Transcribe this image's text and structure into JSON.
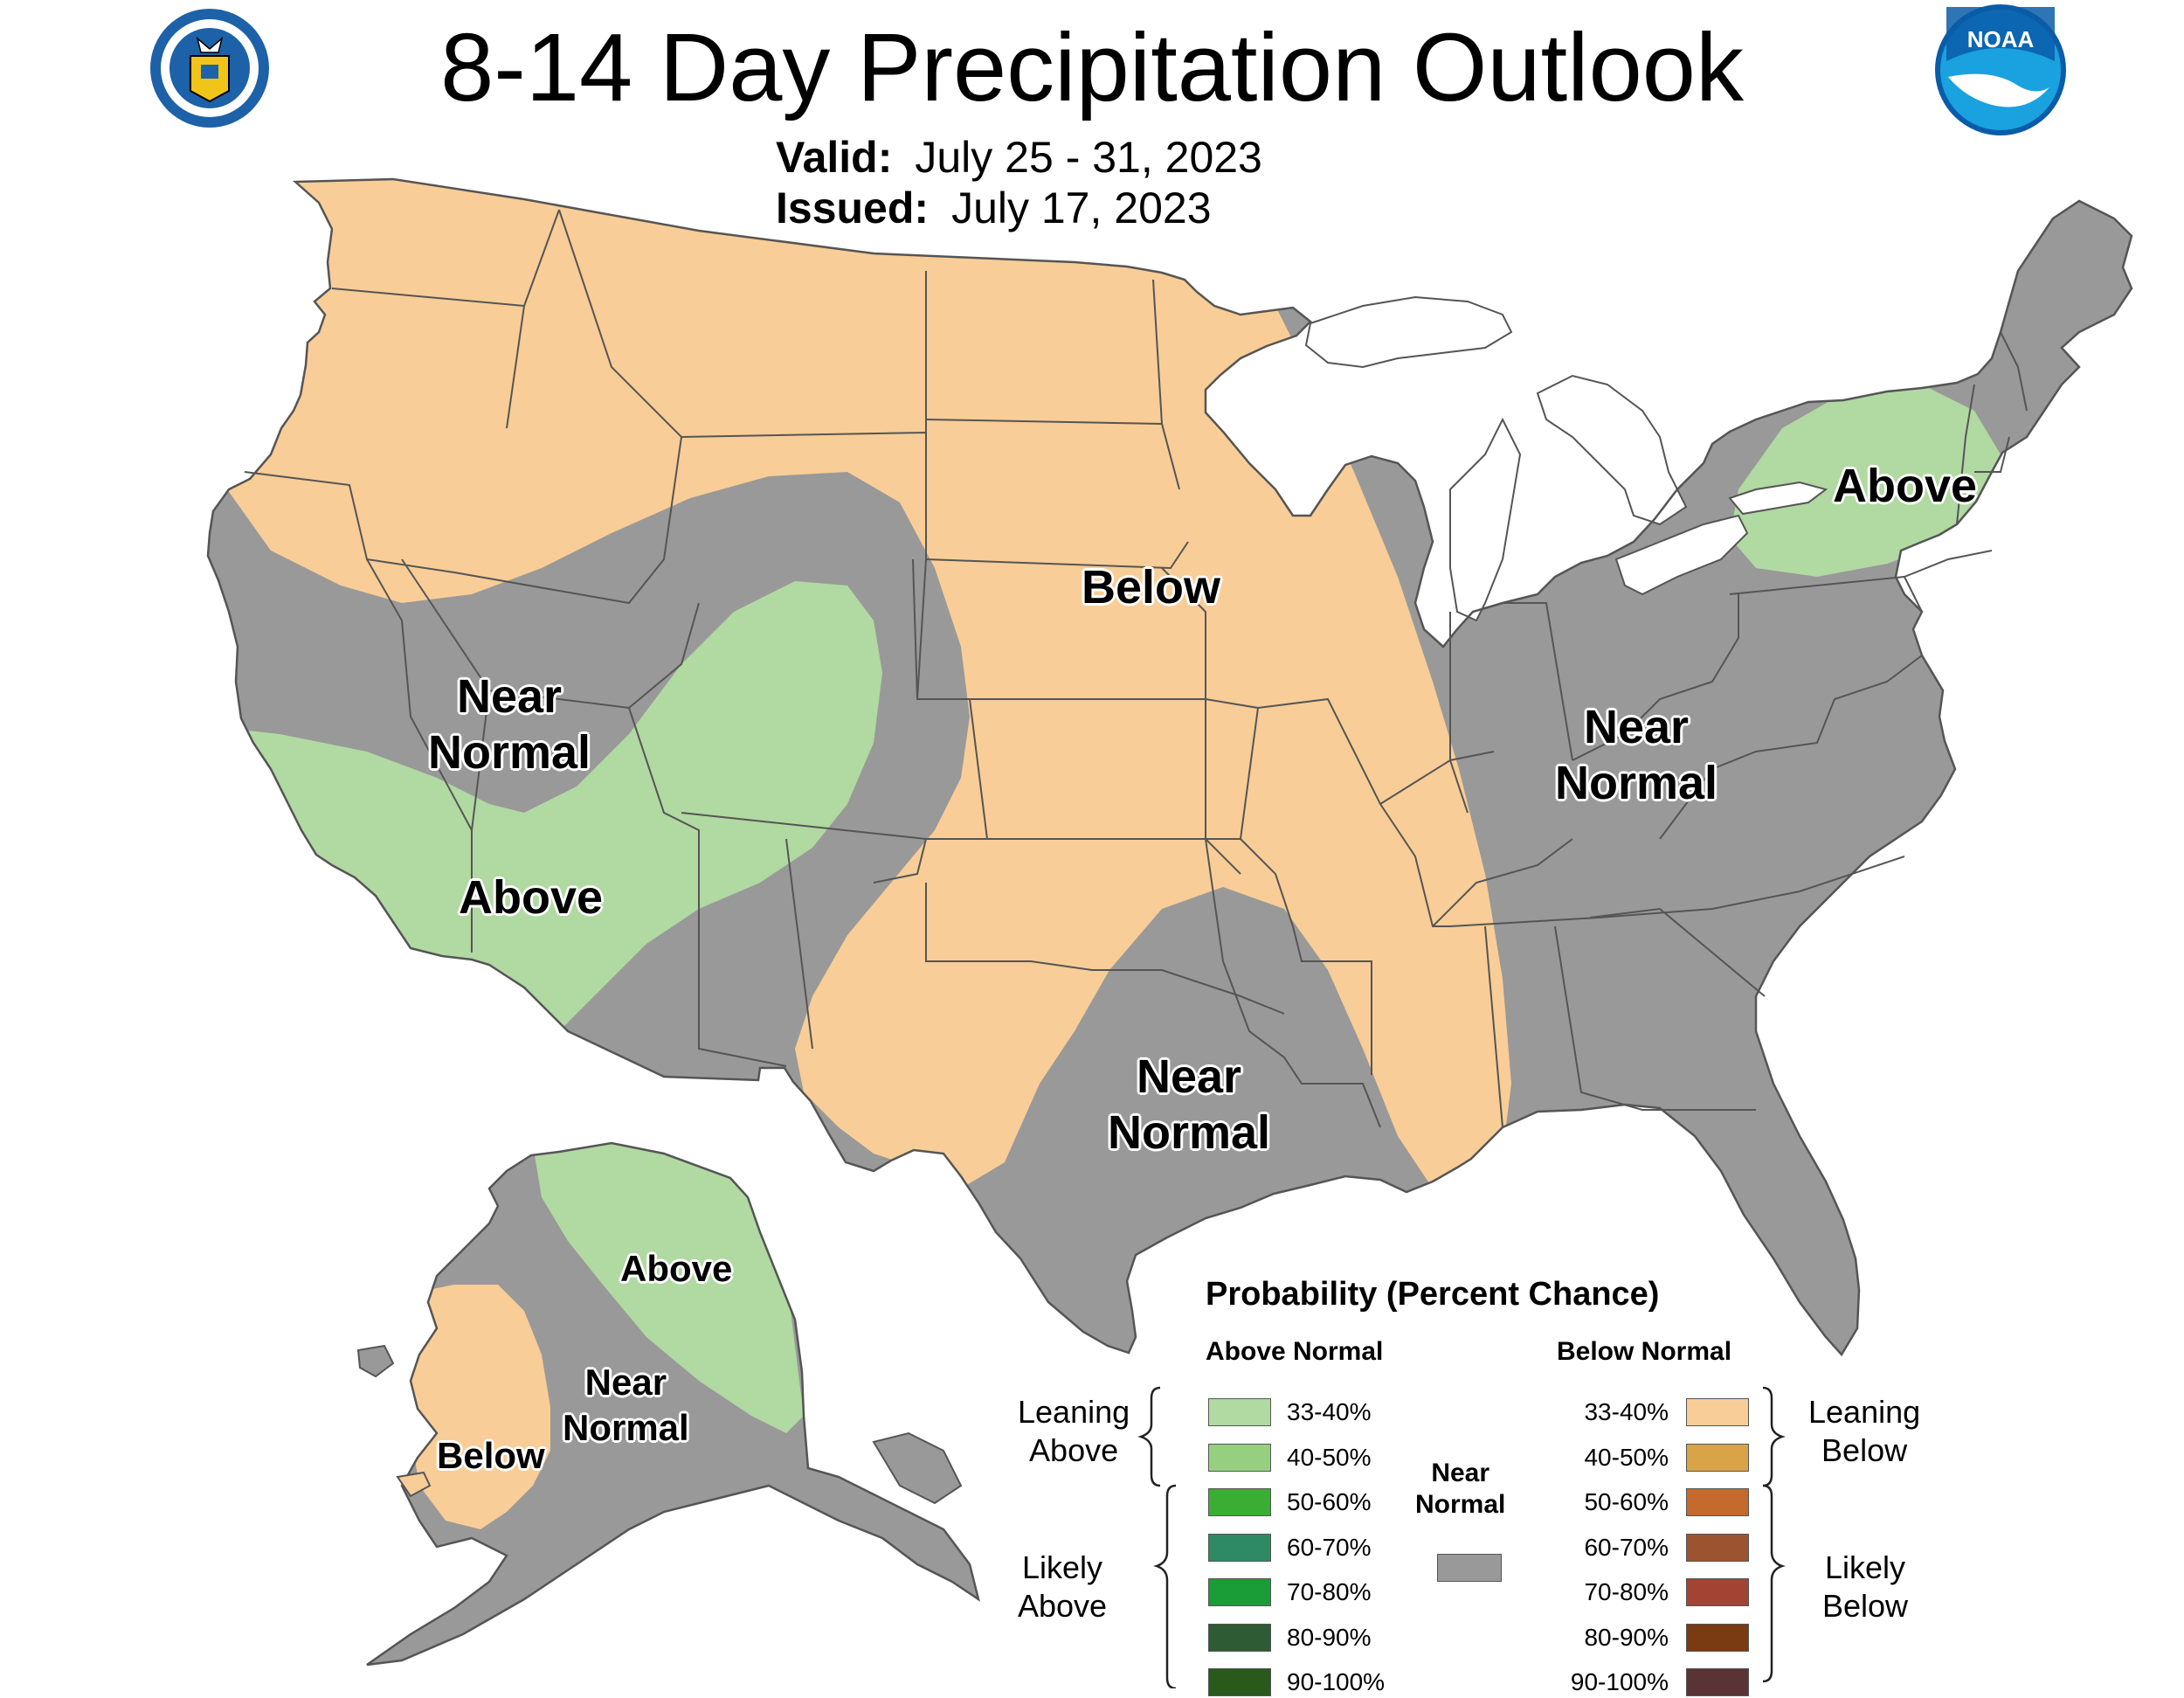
{
  "title": "8-14 Day Precipitation Outlook",
  "valid_label": "Valid:",
  "valid_dates": "July 25 - 31, 2023",
  "issued_label": "Issued:",
  "issued_date": "July 17, 2023",
  "logos": {
    "left": "doc-seal-icon",
    "right": "noaa-logo-icon",
    "noaa_text": "NOAA"
  },
  "colors": {
    "near_normal": "#999999",
    "leaning_below": "#f8cd97",
    "leaning_above": "#b1d9a2",
    "water": "#ffffff",
    "border": "#555555"
  },
  "regions": [
    {
      "id": "below-north",
      "label": "Below"
    },
    {
      "id": "near-west",
      "label": "Near\nNormal"
    },
    {
      "id": "above-sw",
      "label": "Above"
    },
    {
      "id": "above-ne",
      "label": "Above"
    },
    {
      "id": "near-east",
      "label": "Near\nNormal"
    },
    {
      "id": "near-south",
      "label": "Near\nNormal"
    },
    {
      "id": "ak-above",
      "label": "Above"
    },
    {
      "id": "ak-near",
      "label": "Near\nNormal"
    },
    {
      "id": "ak-below",
      "label": "Below"
    }
  ],
  "legend": {
    "title": "Probability (Percent Chance)",
    "above_header": "Above Normal",
    "below_header": "Below Normal",
    "near_label": "Near\nNormal",
    "near_color": "#999999",
    "leaning_above": "Leaning\nAbove",
    "likely_above": "Likely\nAbove",
    "leaning_below": "Leaning\nBelow",
    "likely_below": "Likely\nBelow",
    "above": [
      {
        "range": "33-40%",
        "color": "#b1d9a2"
      },
      {
        "range": "40-50%",
        "color": "#97cf81"
      },
      {
        "range": "50-60%",
        "color": "#3aae32"
      },
      {
        "range": "60-70%",
        "color": "#2e8a64"
      },
      {
        "range": "70-80%",
        "color": "#1a9c36"
      },
      {
        "range": "80-90%",
        "color": "#2e5b33"
      },
      {
        "range": "90-100%",
        "color": "#295a1c"
      }
    ],
    "below": [
      {
        "range": "33-40%",
        "color": "#f8cd97"
      },
      {
        "range": "40-50%",
        "color": "#d9a347"
      },
      {
        "range": "50-60%",
        "color": "#c46a2d"
      },
      {
        "range": "60-70%",
        "color": "#9c5430"
      },
      {
        "range": "70-80%",
        "color": "#a24333"
      },
      {
        "range": "80-90%",
        "color": "#7a3a12"
      },
      {
        "range": "90-100%",
        "color": "#5a3334"
      }
    ]
  }
}
